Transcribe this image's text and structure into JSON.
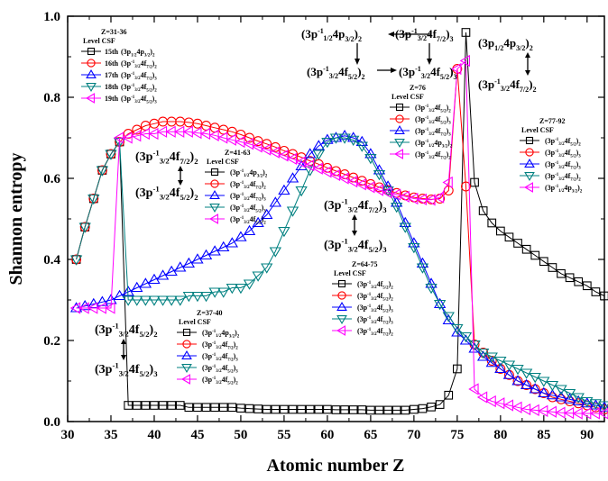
{
  "chart_data": {
    "type": "line",
    "xlabel": "Atomic number Z",
    "ylabel": "Shannon entropy",
    "xlim": [
      30,
      92
    ],
    "ylim": [
      0.0,
      1.0
    ],
    "x_ticks": [
      "30",
      "35",
      "40",
      "45",
      "50",
      "55",
      "60",
      "65",
      "70",
      "75",
      "80",
      "85",
      "90"
    ],
    "y_ticks": [
      "0.0",
      "0.2",
      "0.4",
      "0.6",
      "0.8",
      "1.0"
    ],
    "x": [
      31,
      32,
      33,
      34,
      35,
      36,
      37,
      38,
      39,
      40,
      41,
      42,
      43,
      44,
      45,
      46,
      47,
      48,
      49,
      50,
      51,
      52,
      53,
      54,
      55,
      56,
      57,
      58,
      59,
      60,
      61,
      62,
      63,
      64,
      65,
      66,
      67,
      68,
      69,
      70,
      71,
      72,
      73,
      74,
      75,
      76,
      77,
      78,
      79,
      80,
      81,
      82,
      83,
      84,
      85,
      86,
      87,
      88,
      89,
      90,
      91,
      92
    ],
    "series": [
      {
        "name": "Level 15",
        "color": "#000000",
        "marker": "square",
        "values": [
          0.4,
          0.48,
          0.55,
          0.62,
          0.66,
          0.69,
          0.04,
          0.04,
          0.04,
          0.04,
          0.04,
          0.04,
          0.04,
          0.035,
          0.035,
          0.035,
          0.035,
          0.035,
          0.035,
          0.033,
          0.032,
          0.031,
          0.03,
          0.03,
          0.03,
          0.03,
          0.03,
          0.03,
          0.03,
          0.03,
          0.029,
          0.029,
          0.029,
          0.029,
          0.028,
          0.028,
          0.028,
          0.028,
          0.028,
          0.03,
          0.032,
          0.036,
          0.042,
          0.065,
          0.13,
          0.96,
          0.59,
          0.52,
          0.49,
          0.47,
          0.455,
          0.44,
          0.425,
          0.41,
          0.395,
          0.38,
          0.365,
          0.355,
          0.345,
          0.335,
          0.32,
          0.31
        ]
      },
      {
        "name": "Level 16",
        "color": "#ff0000",
        "marker": "circle",
        "values": [
          0.4,
          0.48,
          0.55,
          0.62,
          0.66,
          0.69,
          0.71,
          0.72,
          0.73,
          0.735,
          0.74,
          0.74,
          0.74,
          0.738,
          0.735,
          0.73,
          0.725,
          0.72,
          0.715,
          0.708,
          0.7,
          0.692,
          0.685,
          0.677,
          0.668,
          0.66,
          0.652,
          0.643,
          0.635,
          0.626,
          0.618,
          0.61,
          0.602,
          0.594,
          0.586,
          0.578,
          0.571,
          0.564,
          0.558,
          0.553,
          0.55,
          0.548,
          0.55,
          0.57,
          0.87,
          0.58,
          0.19,
          0.17,
          0.15,
          0.13,
          0.115,
          0.1,
          0.09,
          0.08,
          0.07,
          0.06,
          0.055,
          0.05,
          0.045,
          0.04,
          0.035,
          0.03
        ]
      },
      {
        "name": "Level 17",
        "color": "#0000ff",
        "marker": "triangle-up",
        "values": [
          0.28,
          0.285,
          0.29,
          0.295,
          0.3,
          0.31,
          0.32,
          0.33,
          0.34,
          0.35,
          0.36,
          0.37,
          0.38,
          0.39,
          0.4,
          0.41,
          0.42,
          0.43,
          0.44,
          0.455,
          0.47,
          0.49,
          0.51,
          0.54,
          0.57,
          0.6,
          0.63,
          0.66,
          0.68,
          0.695,
          0.7,
          0.705,
          0.7,
          0.69,
          0.66,
          0.62,
          0.58,
          0.54,
          0.49,
          0.44,
          0.39,
          0.34,
          0.29,
          0.25,
          0.22,
          0.2,
          0.18,
          0.16,
          0.145,
          0.13,
          0.115,
          0.1,
          0.09,
          0.08,
          0.07,
          0.065,
          0.06,
          0.055,
          0.05,
          0.045,
          0.04,
          0.035
        ]
      },
      {
        "name": "Level 18",
        "color": "#008080",
        "marker": "triangle-down",
        "values": [
          0.4,
          0.48,
          0.55,
          0.62,
          0.66,
          0.69,
          0.3,
          0.3,
          0.3,
          0.3,
          0.3,
          0.3,
          0.3,
          0.31,
          0.31,
          0.31,
          0.32,
          0.32,
          0.33,
          0.33,
          0.34,
          0.36,
          0.38,
          0.42,
          0.47,
          0.52,
          0.57,
          0.62,
          0.66,
          0.69,
          0.7,
          0.7,
          0.695,
          0.68,
          0.65,
          0.61,
          0.57,
          0.53,
          0.48,
          0.43,
          0.38,
          0.33,
          0.29,
          0.26,
          0.23,
          0.21,
          0.19,
          0.17,
          0.16,
          0.15,
          0.14,
          0.13,
          0.12,
          0.11,
          0.1,
          0.09,
          0.08,
          0.07,
          0.06,
          0.05,
          0.045,
          0.04
        ]
      },
      {
        "name": "Level 19",
        "color": "#ff00ff",
        "marker": "triangle-left",
        "values": [
          0.28,
          0.28,
          0.28,
          0.28,
          0.28,
          0.7,
          0.7,
          0.705,
          0.71,
          0.71,
          0.715,
          0.715,
          0.715,
          0.715,
          0.712,
          0.71,
          0.706,
          0.7,
          0.695,
          0.69,
          0.685,
          0.678,
          0.671,
          0.664,
          0.656,
          0.648,
          0.64,
          0.632,
          0.624,
          0.616,
          0.608,
          0.6,
          0.592,
          0.585,
          0.578,
          0.571,
          0.565,
          0.56,
          0.555,
          0.55,
          0.548,
          0.547,
          0.553,
          0.59,
          0.87,
          0.89,
          0.08,
          0.06,
          0.05,
          0.045,
          0.04,
          0.035,
          0.03,
          0.028,
          0.026,
          0.024,
          0.022,
          0.021,
          0.02,
          0.02,
          0.02,
          0.02
        ]
      }
    ],
    "legends": [
      {
        "title": "Z=31-36",
        "header": "Level    CSF",
        "items": [
          {
            "level": "15th",
            "csf": "(3p1/24p3/2)2"
          },
          {
            "level": "16th",
            "csf": "(3p-13/24f7/2)2"
          },
          {
            "level": "17th",
            "csf": "(3p-13/24f7/2)3"
          },
          {
            "level": "18th",
            "csf": "(3p-13/24f5/2)2"
          },
          {
            "level": "19th",
            "csf": "(3p-13/24f5/2)3"
          }
        ]
      },
      {
        "title": "Z=37-40",
        "header": "Level    CSF",
        "items": [
          {
            "csf": "(3p-11/24p3/2)2"
          },
          {
            "csf": "(3p-13/24f7/2)2"
          },
          {
            "csf": "(3p-13/24f7/2)3"
          },
          {
            "csf": "(3p-13/24f5/2)3"
          },
          {
            "csf": "(3p-13/24f5/2)2"
          }
        ]
      },
      {
        "title": "Z=41-63",
        "header": "Level    CSF",
        "items": [
          {
            "csf": "(3p-11/24p3/2)2"
          },
          {
            "csf": "(3p-13/24f7/2)2"
          },
          {
            "csf": "(3p-13/24f7/2)3"
          },
          {
            "csf": "(3p-13/24f5/2)3"
          },
          {
            "csf": "(3p-13/24f5/2)2"
          }
        ]
      },
      {
        "title": "Z=64-75",
        "header": "Level    CSF",
        "items": [
          {
            "csf": "(3p-13/24f5/2)2"
          },
          {
            "csf": "(3p-13/24f5/2)2"
          },
          {
            "csf": "(3p-13/24f5/2)3"
          },
          {
            "csf": "(3p-13/24f7/2)3"
          },
          {
            "csf": "(3p-13/24f7/2)2"
          }
        ]
      },
      {
        "title": "Z=76",
        "header": "Level    CSF",
        "items": [
          {
            "csf": "(3p-13/24f5/2)2"
          },
          {
            "csf": "(3p-13/24f5/2)3"
          },
          {
            "csf": "(3p-13/24f7/2)3"
          },
          {
            "csf": "(3p-11/24p3/2)2"
          },
          {
            "csf": "(3p-13/24f7/2)2"
          }
        ]
      },
      {
        "title": "Z=77-92",
        "header": "Level    CSF",
        "items": [
          {
            "csf": "(3p-13/24f5/2)2"
          },
          {
            "csf": "(3p-13/24f5/2)3"
          },
          {
            "csf": "(3p-13/24f7/2)3"
          },
          {
            "csf": "(3p-13/24f7/2)2"
          },
          {
            "csf": "(3p-11/24p3/2)2"
          }
        ]
      }
    ],
    "annotations": [
      {
        "top": "(3p-13/24f7/2)2",
        "bottom": "(3p-13/24f5/2)2"
      },
      {
        "top": "(3p-13/24f7/2)3",
        "bottom": "(3p-13/24f5/2)3"
      },
      {
        "top": "(3p-13/24f5/2)2",
        "bottom": "(3p-13/24f5/2)3"
      },
      {
        "top": "(3p-11/24p3/2)2",
        "right": "(3p-13/24f7/2)3"
      },
      {
        "top": "(3p-13/24f5/2)2",
        "right": "(3p-13/24f5/2)3"
      },
      {
        "top": "(3p1/24p3/2)2",
        "bottom": "(3p-13/24f7/2)2"
      }
    ]
  }
}
